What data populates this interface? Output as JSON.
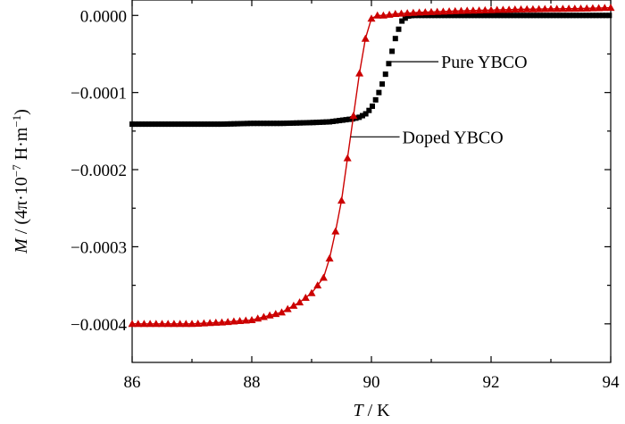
{
  "chart_data": {
    "type": "line",
    "xlabel_var": "T",
    "xlabel_unit": " / K",
    "ylabel": {
      "var": "M",
      "pre": " / (4π·10",
      "exp": "−7",
      "mid": " H·m",
      "exp2": "−1",
      "post": ")"
    },
    "xlim": [
      86,
      94
    ],
    "ylim": [
      -0.00045,
      2e-05
    ],
    "x_ticks": [
      86,
      88,
      90,
      92,
      94
    ],
    "x_tick_labels": [
      "86",
      "88",
      "90",
      "92",
      "94"
    ],
    "y_ticks": [
      0.0,
      -0.0001,
      -0.0002,
      -0.0003,
      -0.0004
    ],
    "y_tick_labels": [
      "0.0000",
      "−0.0001",
      "−0.0002",
      "−0.0003",
      "−0.0004"
    ],
    "grid": false,
    "series": [
      {
        "name": "Pure YBCO",
        "color": "#000000",
        "marker": "square",
        "line": false,
        "x": [
          86.0,
          86.5,
          87.0,
          87.5,
          88.0,
          88.5,
          89.0,
          89.3,
          89.5,
          89.7,
          89.8,
          89.9,
          90.0,
          90.1,
          90.2,
          90.3,
          90.4,
          90.5,
          90.6,
          90.7,
          90.9,
          91.2,
          92.0,
          93.0,
          94.0
        ],
        "y": [
          -0.000141,
          -0.000141,
          -0.000141,
          -0.000141,
          -0.00014,
          -0.00014,
          -0.000139,
          -0.000138,
          -0.000136,
          -0.000134,
          -0.000132,
          -0.000128,
          -0.00012,
          -0.000105,
          -8.5e-05,
          -6e-05,
          -3e-05,
          -8e-06,
          -1e-06,
          0.0,
          0.0,
          0.0,
          0.0,
          0.0,
          0.0
        ]
      },
      {
        "name": "Doped YBCO",
        "color": "#cc0000",
        "marker": "triangle",
        "line": true,
        "x": [
          86.0,
          86.5,
          87.0,
          87.5,
          88.0,
          88.5,
          88.8,
          89.0,
          89.2,
          89.3,
          89.4,
          89.5,
          89.6,
          89.7,
          89.8,
          89.9,
          90.0,
          90.1,
          90.2,
          90.4,
          90.8,
          91.5,
          92.5,
          93.5,
          94.0
        ],
        "y": [
          -0.0004,
          -0.0004,
          -0.0004,
          -0.000398,
          -0.000395,
          -0.000385,
          -0.000372,
          -0.00036,
          -0.00034,
          -0.000315,
          -0.00028,
          -0.00024,
          -0.000185,
          -0.00013,
          -7.5e-05,
          -3e-05,
          -4e-06,
          0.0,
          0.0,
          2e-06,
          4e-06,
          6e-06,
          8e-06,
          9e-06,
          1e-05
        ]
      }
    ],
    "annotations": [
      {
        "text": "Pure YBCO",
        "series": "Pure YBCO"
      },
      {
        "text": "Doped YBCO",
        "series": "Doped YBCO"
      }
    ]
  }
}
